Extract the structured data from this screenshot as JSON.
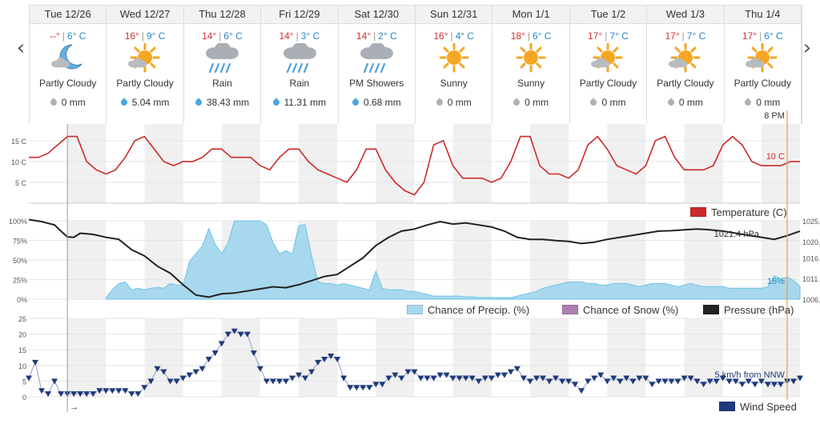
{
  "navigation": {
    "prev_glyph": "‹",
    "next_glyph": "›"
  },
  "days": [
    {
      "date": "Tue 12/26",
      "high": "--°",
      "low": "6° C",
      "condition": "Partly Cloudy",
      "icon": "moon-cloud-icon",
      "precip": "0 mm",
      "rain": false
    },
    {
      "date": "Wed 12/27",
      "high": "16°",
      "low": "9° C",
      "condition": "Partly Cloudy",
      "icon": "sun-cloud-icon",
      "precip": "5.04 mm",
      "rain": true
    },
    {
      "date": "Thu 12/28",
      "high": "14°",
      "low": "6° C",
      "condition": "Rain",
      "icon": "rain-cloud-icon",
      "precip": "38.43 mm",
      "rain": true
    },
    {
      "date": "Fri 12/29",
      "high": "14°",
      "low": "3° C",
      "condition": "Rain",
      "icon": "rain-cloud-icon",
      "precip": "11.31 mm",
      "rain": true
    },
    {
      "date": "Sat 12/30",
      "high": "14°",
      "low": "2° C",
      "condition": "PM Showers",
      "icon": "showers-cloud-icon",
      "precip": "0.68 mm",
      "rain": true
    },
    {
      "date": "Sun 12/31",
      "high": "16°",
      "low": "4° C",
      "condition": "Sunny",
      "icon": "sun-icon",
      "precip": "0 mm",
      "rain": false
    },
    {
      "date": "Mon 1/1",
      "high": "18°",
      "low": "6° C",
      "condition": "Sunny",
      "icon": "sun-icon",
      "precip": "0 mm",
      "rain": false
    },
    {
      "date": "Tue 1/2",
      "high": "17°",
      "low": "7° C",
      "condition": "Partly Cloudy",
      "icon": "sun-cloud-icon",
      "precip": "0 mm",
      "rain": false
    },
    {
      "date": "Wed 1/3",
      "high": "17°",
      "low": "7° C",
      "condition": "Partly Cloudy",
      "icon": "sun-cloud-icon",
      "precip": "0 mm",
      "rain": false
    },
    {
      "date": "Thu 1/4",
      "high": "17°",
      "low": "6° C",
      "condition": "Partly Cloudy",
      "icon": "sun-cloud-icon",
      "precip": "0 mm",
      "rain": false
    }
  ],
  "legends": {
    "temperature": "Temperature (C)",
    "precip": "Chance of Precip. (%)",
    "snow": "Chance of Snow (%)",
    "pressure": "Pressure (hPa)",
    "wind": "Wind Speed"
  },
  "hover": {
    "time": "8 PM",
    "temperature": "10 C",
    "precip": "16%",
    "pressure": "1021.4 hPa",
    "wind": "5 km/h from NNW"
  },
  "colors": {
    "temperature": "#cc2a2a",
    "precip_fill": "#a8d8ee",
    "precip_line": "#6cc3e6",
    "snow": "#b07fb0",
    "pressure": "#222222",
    "wind": "#1f3a7a",
    "night_band": "#f0f0f0",
    "cursor": "#f0a050",
    "sun": "#f5a623",
    "cloud": "#9aa0a6"
  },
  "chart_data": [
    {
      "type": "line",
      "name": "temperature",
      "xlabel": "",
      "ylabel": "",
      "yticks": [
        "5 C",
        "10 C",
        "15 C"
      ],
      "ylim": [
        0,
        19
      ],
      "x_hours": [
        0,
        3,
        6,
        9,
        12,
        15,
        18,
        21,
        24,
        27,
        30,
        33,
        36,
        39,
        42,
        45,
        48,
        51,
        54,
        57,
        60,
        63,
        66,
        69,
        72,
        75,
        78,
        81,
        84,
        87,
        90,
        93,
        96,
        99,
        102,
        105,
        108,
        111,
        114,
        117,
        120,
        123,
        126,
        129,
        132,
        135,
        138,
        141,
        144,
        147,
        150,
        153,
        156,
        159,
        162,
        165,
        168,
        171,
        174,
        177,
        180,
        183,
        186,
        189,
        192,
        195,
        198,
        201,
        204,
        207,
        210,
        213,
        216,
        219,
        222,
        225,
        228,
        231,
        234,
        237,
        240
      ],
      "values": [
        11,
        11,
        12,
        14,
        16,
        16,
        10,
        8,
        7,
        8,
        11,
        15,
        16,
        13,
        10,
        9,
        10,
        10,
        11,
        13,
        13,
        11,
        11,
        11,
        9,
        8,
        11,
        13,
        13,
        10,
        8,
        7,
        6,
        5,
        8,
        13,
        13,
        8,
        5,
        3,
        2,
        5,
        14,
        15,
        9,
        6,
        6,
        6,
        5,
        6,
        10,
        16,
        16,
        9,
        7,
        7,
        6,
        8,
        14,
        16,
        13,
        9,
        8,
        7,
        9,
        15,
        16,
        11,
        8,
        8,
        8,
        9,
        14,
        16,
        14,
        10,
        9,
        9,
        9,
        10,
        10
      ]
    },
    {
      "type": "area",
      "name": "precip-pressure",
      "y_left_ticks": [
        "0%",
        "25%",
        "50%",
        "75%",
        "100%"
      ],
      "y_right_ticks": [
        "1006.",
        "1011.",
        "1016.",
        "1020.",
        "1025."
      ],
      "series": [
        {
          "name": "Chance of Precip. (%)",
          "x_hours": [
            0,
            2,
            4,
            6,
            8,
            10,
            12,
            14,
            16,
            18,
            20,
            22,
            24,
            26,
            28,
            30,
            32,
            34,
            36,
            38,
            40,
            42,
            44,
            46,
            48,
            50,
            52,
            54,
            56,
            58,
            60,
            62,
            64,
            66,
            68,
            70,
            72,
            74,
            76,
            78,
            80,
            82,
            84,
            86,
            88,
            90,
            92,
            94,
            96,
            98,
            100,
            102,
            104,
            106,
            108,
            110,
            112,
            114,
            116,
            118,
            120,
            122,
            124,
            126,
            128,
            130,
            132,
            134,
            136,
            138,
            140,
            142,
            144,
            146,
            148,
            150,
            152,
            154,
            156,
            158,
            160,
            162,
            164,
            166,
            168,
            170,
            172,
            174,
            176,
            178,
            180,
            182,
            184,
            186,
            188,
            190,
            192,
            194,
            196,
            198,
            200,
            202,
            204,
            206,
            208,
            210,
            212,
            214,
            216,
            218,
            220,
            222,
            224,
            226,
            228,
            230,
            232,
            234,
            236,
            238,
            240
          ],
          "values": [
            null,
            null,
            null,
            null,
            null,
            null,
            null,
            null,
            null,
            null,
            null,
            null,
            2,
            12,
            20,
            22,
            12,
            14,
            12,
            14,
            15,
            14,
            20,
            18,
            18,
            48,
            58,
            68,
            90,
            70,
            58,
            72,
            100,
            100,
            100,
            100,
            100,
            95,
            72,
            58,
            62,
            58,
            94,
            95,
            55,
            22,
            20,
            20,
            18,
            20,
            18,
            16,
            14,
            12,
            36,
            14,
            12,
            12,
            12,
            10,
            10,
            8,
            6,
            4,
            4,
            4,
            4,
            4,
            3,
            3,
            2,
            2,
            2,
            2,
            2,
            2,
            4,
            6,
            8,
            10,
            14,
            16,
            18,
            20,
            22,
            22,
            22,
            20,
            20,
            18,
            18,
            20,
            20,
            20,
            18,
            16,
            18,
            20,
            20,
            20,
            18,
            16,
            18,
            20,
            18,
            16,
            16,
            16,
            16,
            14,
            14,
            14,
            14,
            14,
            14,
            16,
            30,
            26,
            28,
            24,
            16
          ]
        },
        {
          "name": "Pressure (hPa)",
          "x_hours": [
            0,
            4,
            8,
            10,
            12,
            14,
            16,
            20,
            24,
            28,
            32,
            36,
            40,
            44,
            48,
            52,
            56,
            60,
            64,
            68,
            72,
            76,
            80,
            84,
            88,
            92,
            96,
            100,
            104,
            108,
            112,
            116,
            120,
            124,
            128,
            132,
            136,
            140,
            144,
            148,
            152,
            156,
            160,
            164,
            168,
            172,
            176,
            180,
            184,
            188,
            192,
            196,
            200,
            204,
            208,
            212,
            216,
            220,
            224,
            228,
            232,
            236,
            240
          ],
          "values": [
            1025.3,
            1024.8,
            1024.0,
            1022.5,
            1021.1,
            1021.0,
            1022.0,
            1021.7,
            1021.0,
            1020.5,
            1018.0,
            1016.5,
            1014.0,
            1012.3,
            1009.5,
            1007.0,
            1006.5,
            1007.3,
            1007.5,
            1008.0,
            1008.5,
            1009.0,
            1008.8,
            1009.5,
            1010.5,
            1011.5,
            1012.0,
            1014.0,
            1016.0,
            1019.0,
            1021.0,
            1022.5,
            1023.0,
            1024.0,
            1024.8,
            1024.2,
            1024.5,
            1024.0,
            1023.5,
            1022.5,
            1021.0,
            1020.5,
            1020.5,
            1020.2,
            1020.0,
            1019.5,
            1019.8,
            1020.5,
            1021.0,
            1021.5,
            1022.0,
            1022.5,
            1022.6,
            1022.8,
            1023.0,
            1022.8,
            1022.5,
            1022.0,
            1021.5,
            1021.0,
            1020.5,
            1021.4,
            1022.5
          ]
        }
      ],
      "ylim_left": [
        0,
        100
      ],
      "ylim_right": [
        1006,
        1025
      ]
    },
    {
      "type": "line",
      "name": "wind",
      "yticks": [
        "0",
        "5",
        "10",
        "15",
        "20",
        "25"
      ],
      "ylim": [
        0,
        25
      ],
      "x_hours": [
        0,
        2,
        4,
        6,
        8,
        10,
        12,
        14,
        16,
        18,
        20,
        22,
        24,
        26,
        28,
        30,
        32,
        34,
        36,
        38,
        40,
        42,
        44,
        46,
        48,
        50,
        52,
        54,
        56,
        58,
        60,
        62,
        64,
        66,
        68,
        70,
        72,
        74,
        76,
        78,
        80,
        82,
        84,
        86,
        88,
        90,
        92,
        94,
        96,
        98,
        100,
        102,
        104,
        106,
        108,
        110,
        112,
        114,
        116,
        118,
        120,
        122,
        124,
        126,
        128,
        130,
        132,
        134,
        136,
        138,
        140,
        142,
        144,
        146,
        148,
        150,
        152,
        154,
        156,
        158,
        160,
        162,
        164,
        166,
        168,
        170,
        172,
        174,
        176,
        178,
        180,
        182,
        184,
        186,
        188,
        190,
        192,
        194,
        196,
        198,
        200,
        202,
        204,
        206,
        208,
        210,
        212,
        214,
        216,
        218,
        220,
        222,
        224,
        226,
        228,
        230,
        232,
        234,
        236,
        238,
        240
      ],
      "values": [
        6,
        11,
        2,
        1,
        5,
        1,
        1,
        1,
        1,
        1,
        1,
        2,
        2,
        2,
        2,
        2,
        1,
        1,
        3,
        5,
        9,
        8,
        5,
        5,
        6,
        7,
        8,
        9,
        12,
        14,
        17,
        20,
        21,
        20,
        20,
        14,
        9,
        5,
        5,
        5,
        5,
        6,
        7,
        6,
        8,
        11,
        12,
        13,
        12,
        6,
        3,
        3,
        3,
        3,
        4,
        4,
        6,
        7,
        6,
        8,
        8,
        6,
        6,
        6,
        7,
        7,
        6,
        6,
        6,
        6,
        5,
        6,
        6,
        7,
        7,
        8,
        9,
        6,
        5,
        6,
        6,
        5,
        6,
        5,
        5,
        4,
        2,
        5,
        6,
        7,
        5,
        6,
        5,
        6,
        5,
        6,
        6,
        4,
        5,
        5,
        5,
        5,
        6,
        6,
        5,
        4,
        5,
        5,
        6,
        5,
        5,
        4,
        5,
        4,
        5,
        4,
        4,
        4,
        5,
        5,
        6
      ]
    }
  ]
}
